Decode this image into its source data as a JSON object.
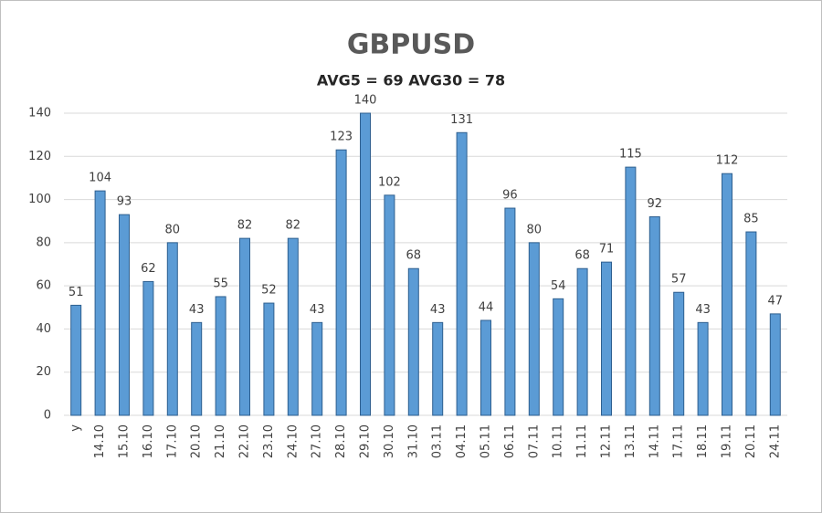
{
  "chart_data": {
    "type": "bar",
    "title": "GBPUSD",
    "subtitle": "AVG5 = 69 AVG30 = 78",
    "categories": [
      "у",
      "14.10",
      "15.10",
      "16.10",
      "17.10",
      "20.10",
      "21.10",
      "22.10",
      "23.10",
      "24.10",
      "27.10",
      "28.10",
      "29.10",
      "30.10",
      "31.10",
      "03.11",
      "04.11",
      "05.11",
      "06.11",
      "07.11",
      "10.11",
      "11.11",
      "12.11",
      "13.11",
      "14.11",
      "17.11",
      "18.11",
      "19.11",
      "20.11",
      "24.11"
    ],
    "values": [
      51,
      104,
      93,
      62,
      80,
      43,
      55,
      82,
      52,
      82,
      43,
      123,
      140,
      102,
      68,
      43,
      131,
      44,
      96,
      80,
      54,
      68,
      71,
      115,
      92,
      57,
      43,
      112,
      85,
      47
    ],
    "color": "#5b9bd5",
    "ylim": [
      0,
      140
    ],
    "yticks": [
      0,
      20,
      40,
      60,
      80,
      100,
      120,
      140
    ],
    "grid": true
  }
}
